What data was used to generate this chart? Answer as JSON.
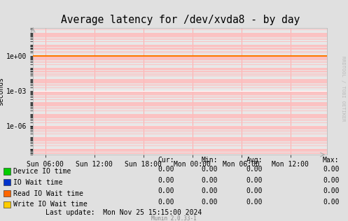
{
  "title": "Average latency for /dev/xvda8 - by day",
  "ylabel": "seconds",
  "bg_color": "#e0e0e0",
  "plot_bg_color": "#e8e8e8",
  "orange_line_y": 1.0,
  "orange_line_color": "#ff7700",
  "x_tick_labels": [
    "Sun 06:00",
    "Sun 12:00",
    "Sun 18:00",
    "Mon 00:00",
    "Mon 06:00",
    "Mon 12:00"
  ],
  "x_tick_positions": [
    0.0416667,
    0.208333,
    0.375,
    0.541667,
    0.708333,
    0.875
  ],
  "ylim_min": 3e-09,
  "ylim_max": 300.0,
  "yticks": [
    1e-06,
    0.001,
    1.0
  ],
  "ytick_labels": [
    "1e-06",
    "1e-03",
    "1e+00"
  ],
  "legend_items": [
    {
      "label": "Device IO time",
      "color": "#00cc00"
    },
    {
      "label": "IO Wait time",
      "color": "#0033cc"
    },
    {
      "label": "Read IO Wait time",
      "color": "#ff6600"
    },
    {
      "label": "Write IO Wait time",
      "color": "#ffcc00"
    }
  ],
  "table_headers": [
    "Cur:",
    "Min:",
    "Avg:",
    "Max:"
  ],
  "table_values": [
    [
      "0.00",
      "0.00",
      "0.00",
      "0.00"
    ],
    [
      "0.00",
      "0.00",
      "0.00",
      "0.00"
    ],
    [
      "0.00",
      "0.00",
      "0.00",
      "0.00"
    ],
    [
      "0.00",
      "0.00",
      "0.00",
      "0.00"
    ]
  ],
  "last_update": "Last update:  Mon Nov 25 15:15:00 2024",
  "munin_version": "Munin 2.0.33-1",
  "rrdtool_text": "RRDTOOL / TOBI OETIKER",
  "title_fontsize": 10.5,
  "axis_fontsize": 7,
  "legend_fontsize": 7,
  "table_fontsize": 7
}
